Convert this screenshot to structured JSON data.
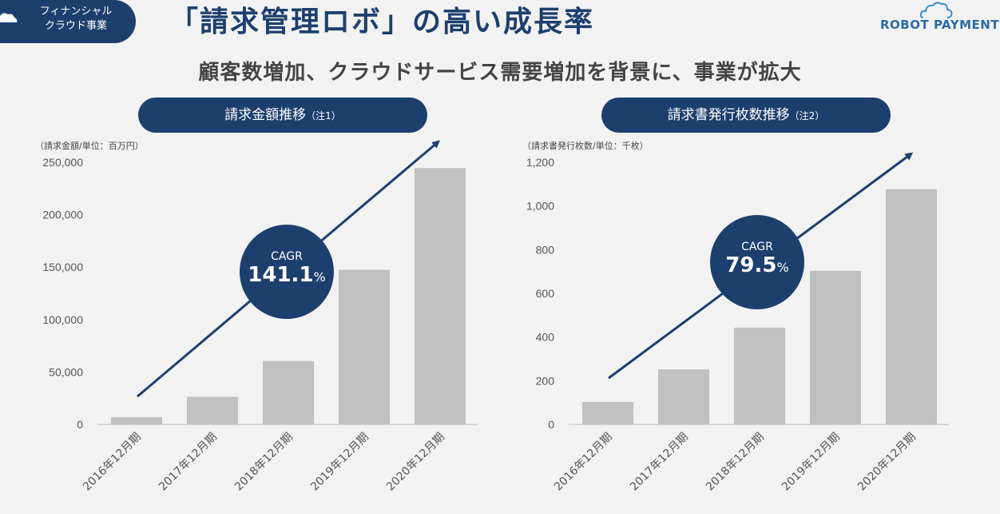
{
  "header": {
    "tag_line1": "フィナンシャル",
    "tag_line2": "クラウド事業",
    "title": "「請求管理ロボ」の高い成長率",
    "logo": "ROBOT PAYMENT",
    "subtitle": "顧客数増加、クラウドサービス需要増加を背景に、事業が拡大"
  },
  "colors": {
    "navy": "#1d3f6e",
    "bar": "#c0c0c0",
    "arrow": "#1d3f6e"
  },
  "chart_data": [
    {
      "type": "bar",
      "title": "請求金額推移",
      "note": "（注1）",
      "unit_label": "（請求金額/単位：百万円）",
      "categories": [
        "2016年12月期",
        "2017年12月期",
        "2018年12月期",
        "2019年12月期",
        "2020年12月期"
      ],
      "values": [
        7000,
        26500,
        60500,
        147500,
        244500
      ],
      "ylim": [
        0,
        250000
      ],
      "yticks": [
        0,
        50000,
        100000,
        150000,
        200000,
        250000
      ],
      "ytick_labels": [
        "0",
        "50,000",
        "100,000",
        "150,000",
        "200,000",
        "250,000"
      ],
      "cagr_label": "CAGR",
      "cagr_value": "141.1",
      "cagr_unit": "%"
    },
    {
      "type": "bar",
      "title": "請求書発行枚数推移",
      "note": "（注2）",
      "unit_label": "（請求書発行枚数/単位：千枚）",
      "categories": [
        "2016年12月期",
        "2017年12月期",
        "2018年12月期",
        "2019年12月期",
        "2020年12月期"
      ],
      "values": [
        103,
        252,
        443,
        703,
        1077
      ],
      "ylim": [
        0,
        1200
      ],
      "yticks": [
        0,
        200,
        400,
        600,
        800,
        1000,
        1200
      ],
      "ytick_labels": [
        "0",
        "200",
        "400",
        "600",
        "800",
        "1,000",
        "1,200"
      ],
      "cagr_label": "CAGR",
      "cagr_value": "79.5",
      "cagr_unit": "%"
    }
  ]
}
